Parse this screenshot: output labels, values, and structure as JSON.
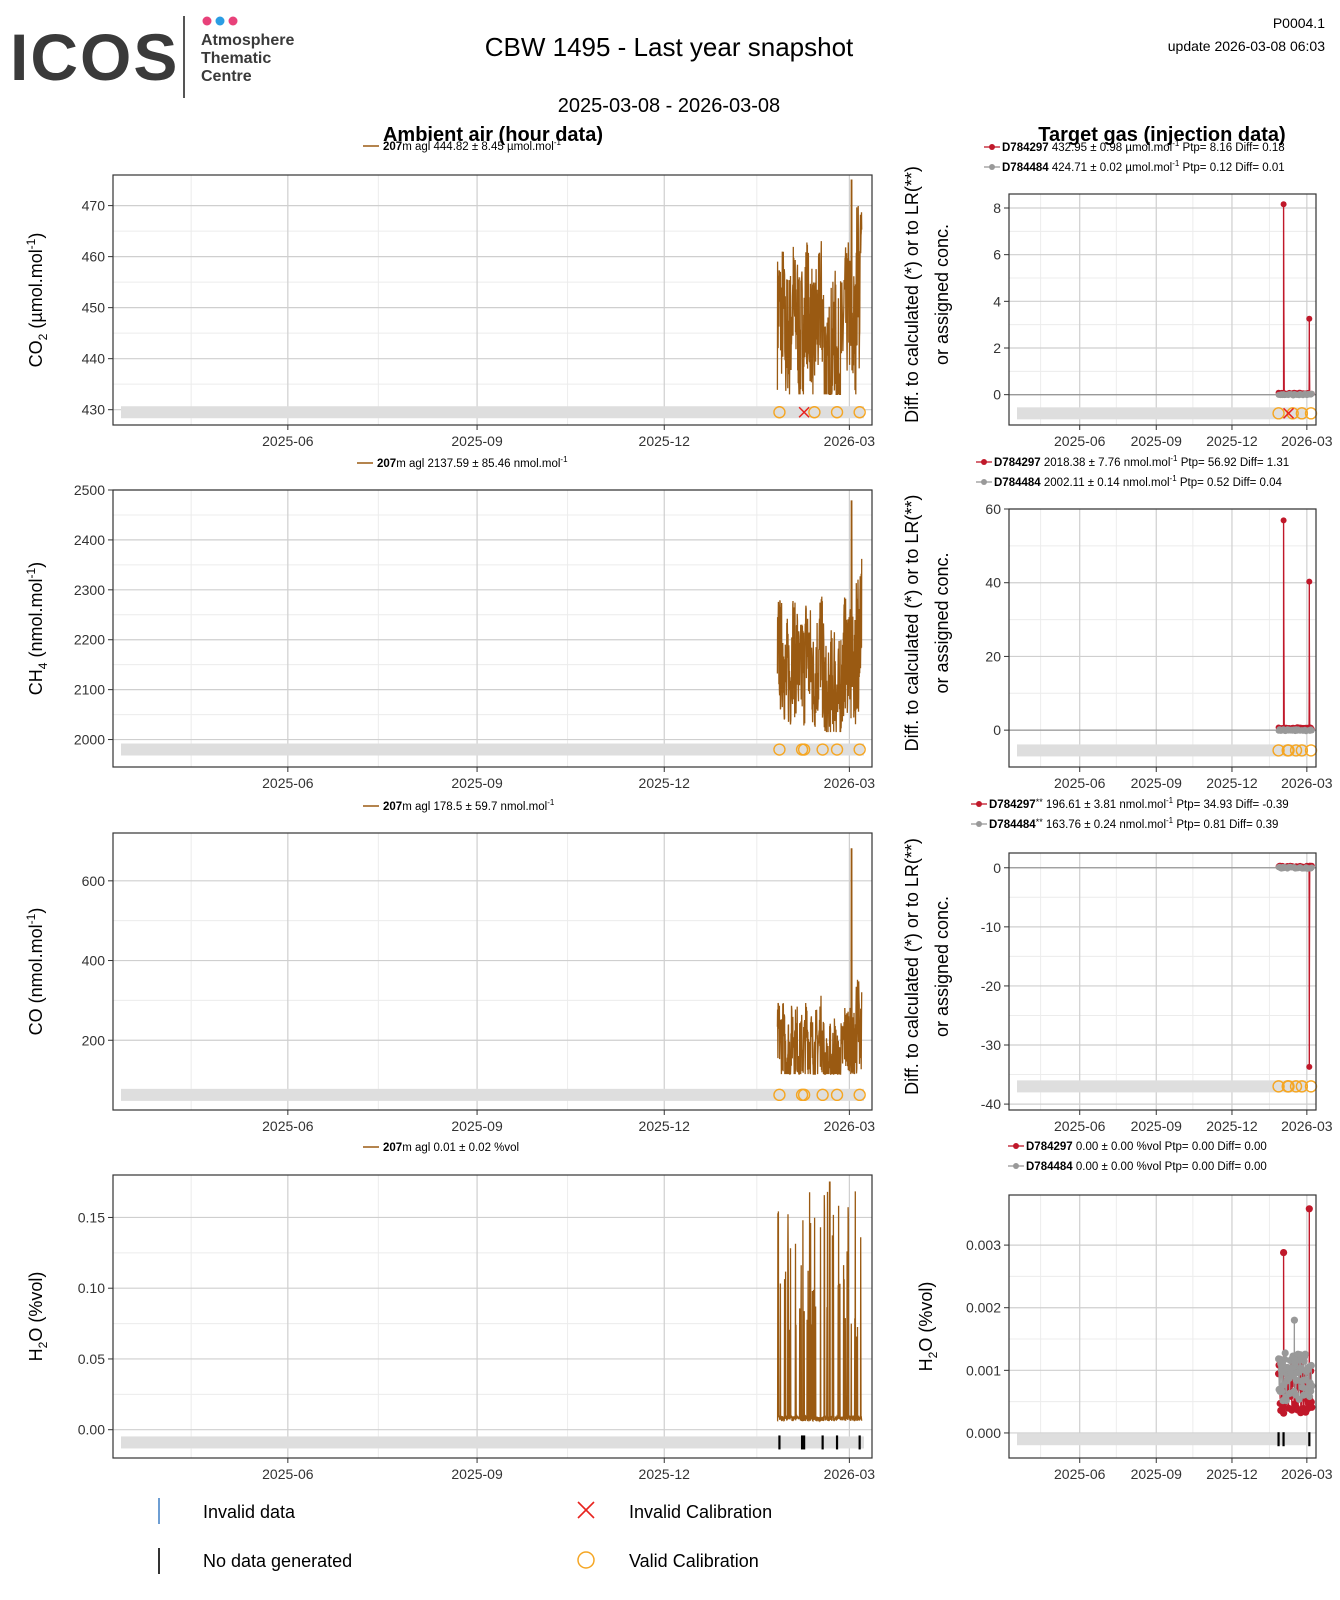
{
  "header": {
    "logo_text": "ICOS",
    "logo_sub": [
      "Atmosphere",
      "Thematic",
      "Centre"
    ],
    "logo_dots": [
      "#e8417a",
      "#2a9de3",
      "#e8417a"
    ],
    "title": "CBW 1495 - Last year snapshot",
    "code": "P0004.1",
    "update": "update  2026-03-08 06:03",
    "date_range": "2025-03-08 - 2026-03-08"
  },
  "columns": {
    "left_title": "Ambient air (hour data)",
    "right_title": "Target gas (injection data)"
  },
  "x_axis": {
    "range": [
      "2025-03-08",
      "2026-03-12"
    ],
    "ticks": [
      "2025-06",
      "2025-09",
      "2025-12",
      "2026-03"
    ]
  },
  "colors": {
    "ambient_line": "#9a5a12",
    "tg1": "#c0182a",
    "tg2": "#999999",
    "valid_cal": "#f5a623",
    "invalid_cal": "#e8231e",
    "invalid_data": "#4a86c8",
    "no_data": "#000000",
    "band": "#dedede"
  },
  "chart_data": [
    {
      "type": "line",
      "panel": "ambient",
      "gas": "CO2",
      "ylabel": "CO2 (µmol.mol-1)",
      "ylabel_main": "CO",
      "ylabel_sub": "2",
      "ylabel_unit": " (µmol.mol",
      "ylabel_sup": "-1",
      "ylabel_close": ")",
      "ylim": [
        427,
        476
      ],
      "yticks": [
        430,
        440,
        450,
        460,
        470
      ],
      "tick_labels": [
        "430",
        "440",
        "450",
        "460",
        "470"
      ],
      "legend": {
        "height": "207",
        "rest": "m agl 444.82 ± 8.45 µmol.mol",
        "sup": "-1"
      },
      "data_start": "2026-01-25",
      "data_end": "2026-03-07",
      "shape": {
        "lo": 433,
        "hi": 468,
        "spike": 475,
        "spike_at": 0.88,
        "base": 447
      },
      "band_y": 429.5,
      "cal_valid": [
        "2026-01-26",
        "2026-02-12",
        "2026-02-23",
        "2026-03-06"
      ],
      "cal_invalid": [
        "2026-02-07"
      ],
      "no_data": []
    },
    {
      "type": "line",
      "panel": "ambient",
      "gas": "CH4",
      "ylabel": "CH4 (nmol.mol-1)",
      "ylabel_main": "CH",
      "ylabel_sub": "4",
      "ylabel_unit": " (nmol.mol",
      "ylabel_sup": "-1",
      "ylabel_close": ")",
      "ylim": [
        1945,
        2500
      ],
      "yticks": [
        2000,
        2100,
        2200,
        2300,
        2400,
        2500
      ],
      "tick_labels": [
        "2000",
        "2100",
        "2200",
        "2300",
        "2400",
        "2500"
      ],
      "legend": {
        "height": "207",
        "rest": "m agl 2137.59 ± 85.46 nmol.mol",
        "sup": "-1"
      },
      "data_start": "2026-01-25",
      "data_end": "2026-03-07",
      "shape": {
        "lo": 2015,
        "hi": 2330,
        "spike": 2478,
        "spike_at": 0.88,
        "base": 2150
      },
      "band_y": 1980,
      "cal_valid": [
        "2026-01-26",
        "2026-02-06",
        "2026-02-07",
        "2026-02-16",
        "2026-02-23",
        "2026-03-06"
      ],
      "cal_invalid": [],
      "no_data": []
    },
    {
      "type": "line",
      "panel": "ambient",
      "gas": "CO",
      "ylabel": "CO (nmol.mol-1)",
      "ylabel_main": "CO",
      "ylabel_sub": "",
      "ylabel_unit": " (nmol.mol",
      "ylabel_sup": "-1",
      "ylabel_close": ")",
      "ylim": [
        25,
        720
      ],
      "yticks": [
        200,
        400,
        600
      ],
      "tick_labels": [
        "200",
        "400",
        "600"
      ],
      "legend": {
        "height": "207",
        "rest": "m agl 178.5 ± 59.7 nmol.mol",
        "sup": "-1"
      },
      "data_start": "2026-01-25",
      "data_end": "2026-03-07",
      "shape": {
        "lo": 115,
        "hi": 360,
        "spike": 680,
        "spike_at": 0.88,
        "base": 190
      },
      "band_y": 63,
      "cal_valid": [
        "2026-01-26",
        "2026-02-06",
        "2026-02-07",
        "2026-02-16",
        "2026-02-23",
        "2026-03-06"
      ],
      "cal_invalid": [],
      "no_data": []
    },
    {
      "type": "line",
      "panel": "ambient",
      "gas": "H2O",
      "ylabel": "H2O (%vol)",
      "ylabel_main": "H",
      "ylabel_sub": "2",
      "ylabel_unit": "O (%vol",
      "ylabel_sup": "",
      "ylabel_close": ")",
      "ylim": [
        -0.02,
        0.18
      ],
      "yticks": [
        0.0,
        0.05,
        0.1,
        0.15
      ],
      "tick_labels": [
        "0.00",
        "0.05",
        "0.10",
        "0.15"
      ],
      "legend": {
        "height": "207",
        "rest": "m agl 0.01 ± 0.02 %vol",
        "sup": ""
      },
      "data_start": "2026-01-25",
      "data_end": "2026-03-07",
      "shape": {
        "lo": 0.005,
        "hi": 0.17,
        "spike": 0.175,
        "spike_at": 0.62,
        "base": 0.006,
        "spiky": true
      },
      "band_y": -0.009,
      "cal_valid": [],
      "cal_invalid": [],
      "no_data": [
        "2026-01-26",
        "2026-02-06",
        "2026-02-07",
        "2026-02-16",
        "2026-02-23",
        "2026-03-06"
      ]
    },
    {
      "type": "scatter",
      "panel": "target",
      "gas": "CO2",
      "ylim": [
        -1.3,
        8.6
      ],
      "yticks": [
        0,
        2,
        4,
        6,
        8
      ],
      "tick_labels": [
        "0",
        "2",
        "4",
        "6",
        "8"
      ],
      "legend": [
        {
          "name": "D784297",
          "rest": " 432.95 ± 0.98 µmol.mol",
          "sup": "-1",
          "stats": " Ptp= 8.16 Diff= 0.18"
        },
        {
          "name": "D784484",
          "rest": " 424.71 ± 0.02 µmol.mol",
          "sup": "-1",
          "stats": " Ptp= 0.12 Diff= 0.01"
        }
      ],
      "series": [
        {
          "name": "D784297",
          "spikes": [
            {
              "date": "2026-02-01",
              "value": 8.16
            },
            {
              "date": "2026-03-04",
              "value": 3.25
            }
          ],
          "base": 0.05
        },
        {
          "name": "D784484",
          "spikes": [],
          "base": 0.0
        }
      ],
      "band_y": -0.8,
      "cal_valid": [
        "2026-01-26",
        "2026-02-12",
        "2026-02-23",
        "2026-03-06"
      ],
      "cal_invalid": [
        "2026-02-07"
      ],
      "no_data": []
    },
    {
      "type": "scatter",
      "panel": "target",
      "gas": "CH4",
      "ylim": [
        -10,
        60
      ],
      "yticks": [
        0,
        20,
        40,
        60
      ],
      "tick_labels": [
        "0",
        "20",
        "40",
        "60"
      ],
      "legend": [
        {
          "name": "D784297",
          "rest": " 2018.38 ± 7.76 nmol.mol",
          "sup": "-1",
          "stats": " Ptp= 56.92 Diff= 1.31"
        },
        {
          "name": "D784484",
          "rest": " 2002.11 ± 0.14 nmol.mol",
          "sup": "-1",
          "stats": " Ptp= 0.52 Diff= 0.04"
        }
      ],
      "series": [
        {
          "name": "D784297",
          "spikes": [
            {
              "date": "2026-02-01",
              "value": 56.9
            },
            {
              "date": "2026-03-04",
              "value": 40.3
            }
          ],
          "base": 0.5
        },
        {
          "name": "D784484",
          "spikes": [],
          "base": 0.0
        }
      ],
      "band_y": -5.5,
      "cal_valid": [
        "2026-01-26",
        "2026-02-06",
        "2026-02-07",
        "2026-02-16",
        "2026-02-23",
        "2026-03-06"
      ],
      "cal_invalid": [],
      "no_data": []
    },
    {
      "type": "scatter",
      "panel": "target",
      "gas": "CO",
      "ylim": [
        -41,
        2.5
      ],
      "yticks": [
        -40,
        -30,
        -20,
        -10,
        0
      ],
      "tick_labels": [
        "-40",
        "-30",
        "-20",
        "-10",
        "0"
      ],
      "legend": [
        {
          "name": "D784297",
          "mark": "**",
          "rest": " 196.61 ± 3.81 nmol.mol",
          "sup": "-1",
          "stats": " Ptp= 34.93 Diff= -0.39"
        },
        {
          "name": "D784484",
          "mark": "**",
          "rest": " 163.76 ± 0.24 nmol.mol",
          "sup": "-1",
          "stats": " Ptp= 0.81 Diff= 0.39"
        }
      ],
      "series": [
        {
          "name": "D784297",
          "spikes": [
            {
              "date": "2026-03-04",
              "value": -33.7
            }
          ],
          "base": 0.2
        },
        {
          "name": "D784484",
          "spikes": [],
          "base": 0.0
        }
      ],
      "band_y": -37,
      "cal_valid": [
        "2026-01-26",
        "2026-02-06",
        "2026-02-07",
        "2026-02-16",
        "2026-02-23",
        "2026-03-06"
      ],
      "cal_invalid": [],
      "no_data": []
    },
    {
      "type": "scatter",
      "panel": "target",
      "gas": "H2O",
      "ylabel_main": "H",
      "ylabel_sub": "2",
      "ylabel_unit": "O (%vol",
      "ylabel_close": ")",
      "ylim": [
        -0.0004,
        0.0038
      ],
      "yticks": [
        0.0,
        0.001,
        0.002,
        0.003
      ],
      "tick_labels": [
        "0.000",
        "0.001",
        "0.002",
        "0.003"
      ],
      "legend": [
        {
          "name": "D784297",
          "rest": " 0.00 ± 0.00 %vol Ptp= 0.00 Diff= 0.00",
          "sup": "",
          "stats": ""
        },
        {
          "name": "D784484",
          "rest": " 0.00 ± 0.00 %vol Ptp= 0.00 Diff= 0.00",
          "sup": "",
          "stats": ""
        }
      ],
      "series": [
        {
          "name": "D784297",
          "spikes": [
            {
              "date": "2026-02-01",
              "value": 0.00288
            },
            {
              "date": "2026-03-04",
              "value": 0.00358
            }
          ],
          "base": 0.0007,
          "scatter": true
        },
        {
          "name": "D784484",
          "spikes": [
            {
              "date": "2026-02-14",
              "value": 0.0018
            }
          ],
          "base": 0.0009,
          "scatter": true
        }
      ],
      "band_y": -0.0001,
      "cal_valid": [],
      "cal_invalid": [],
      "no_data": [
        "2026-01-26",
        "2026-02-01",
        "2026-03-04"
      ]
    }
  ],
  "right_ylabel_lines": [
    "Diff. to calculated (*) or to LR(**)",
    "or assigned conc."
  ],
  "legend_bottom": {
    "invalid_data": "Invalid data",
    "no_data": "No data generated",
    "invalid_cal": "Invalid Calibration",
    "valid_cal": "Valid Calibration"
  }
}
